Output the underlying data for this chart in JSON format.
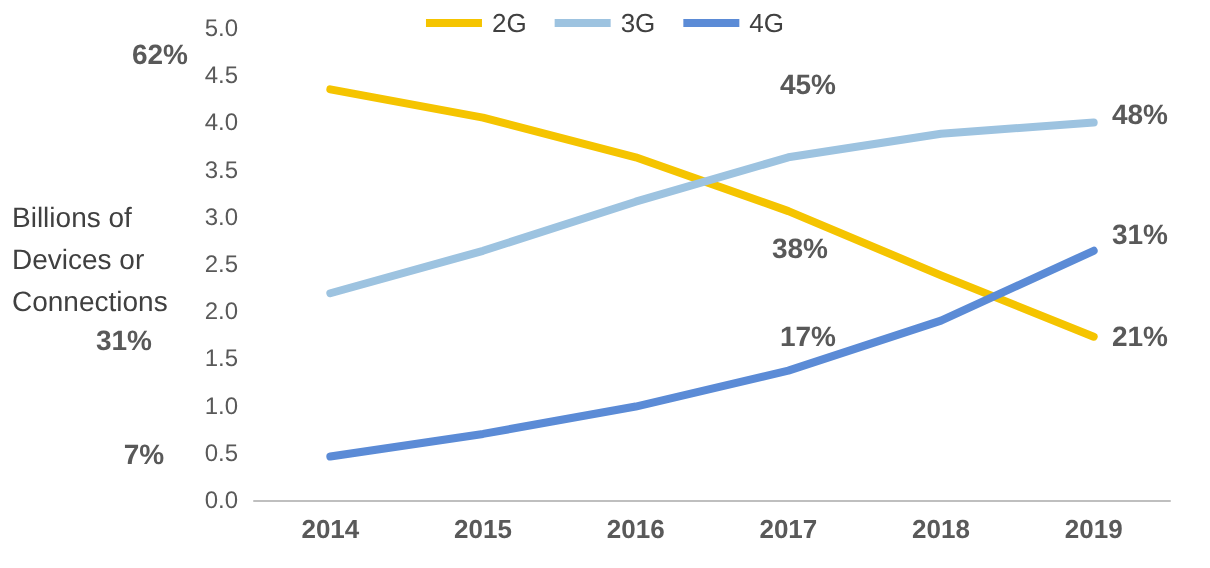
{
  "chart_data": {
    "type": "line",
    "ylabel": "Billions of Devices or Connections",
    "categories": [
      "2014",
      "2015",
      "2016",
      "2017",
      "2018",
      "2019"
    ],
    "series": [
      {
        "name": "2G",
        "color": "#f5c400",
        "values": [
          4.35,
          4.05,
          3.63,
          3.06,
          2.38,
          1.73
        ]
      },
      {
        "name": "3G",
        "color": "#9dc3e0",
        "values": [
          2.19,
          2.64,
          3.16,
          3.63,
          3.88,
          4.0
        ]
      },
      {
        "name": "4G",
        "color": "#5b8bd6",
        "values": [
          0.46,
          0.7,
          0.99,
          1.37,
          1.9,
          2.64
        ]
      }
    ],
    "ylim": [
      0,
      5
    ],
    "yticks": [
      {
        "value": 0,
        "label": "0.0"
      },
      {
        "value": 0.5,
        "label": "0.5"
      },
      {
        "value": 1,
        "label": "1.0"
      },
      {
        "value": 1.5,
        "label": "1.5"
      },
      {
        "value": 2,
        "label": "2.0"
      },
      {
        "value": 2.5,
        "label": "2.5"
      },
      {
        "value": 3,
        "label": "3.0"
      },
      {
        "value": 3.5,
        "label": "3.5"
      },
      {
        "value": 4,
        "label": "4.0"
      },
      {
        "value": 4.5,
        "label": "4.5"
      },
      {
        "value": 5,
        "label": "5.0"
      }
    ],
    "annotations": [
      "62%",
      "31%",
      "7%",
      "45%",
      "38%",
      "17%",
      "48%",
      "31%",
      "21%"
    ],
    "grid": false,
    "legend": "top",
    "marker": "none",
    "line_style": "solid"
  }
}
